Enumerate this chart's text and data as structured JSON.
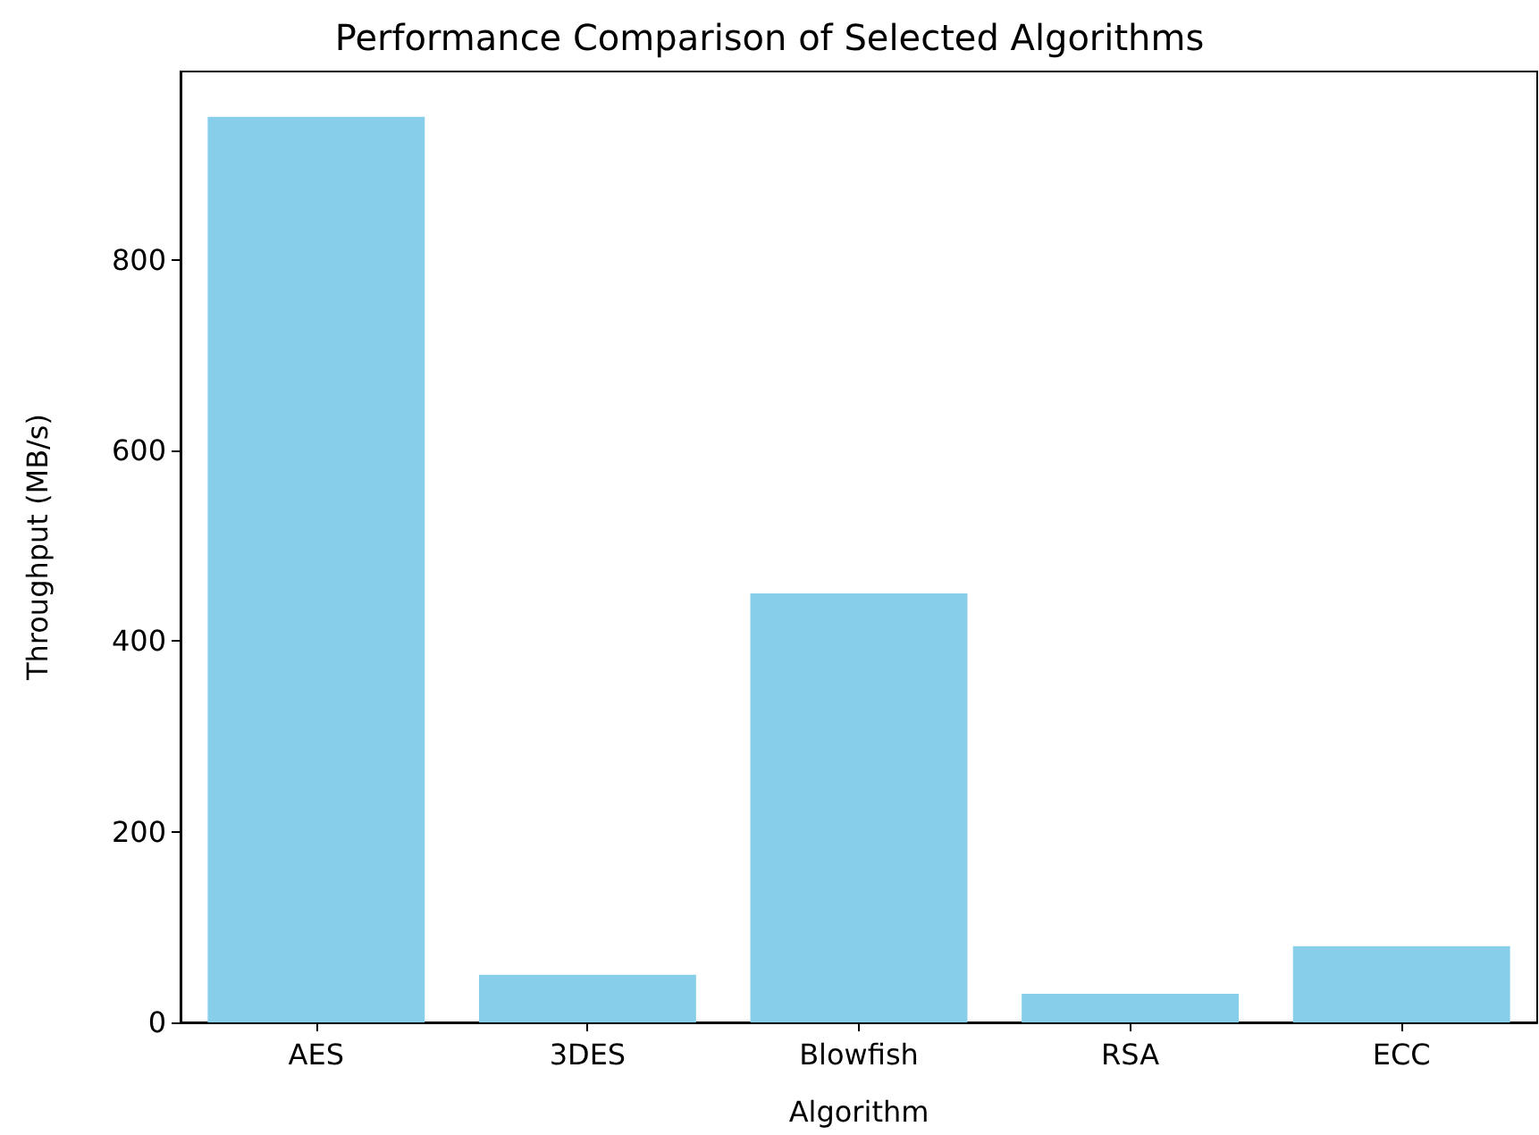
{
  "chart_data": {
    "type": "bar",
    "title": "Performance Comparison of Selected Algorithms",
    "xlabel": "Algorithm",
    "ylabel": "Throughput (MB/s)",
    "categories": [
      "AES",
      "3DES",
      "Blowfish",
      "RSA",
      "ECC"
    ],
    "values": [
      950,
      50,
      450,
      30,
      80
    ],
    "color": "#87ceeb",
    "ylim": [
      0,
      997.5
    ],
    "yticks": [
      0,
      200,
      400,
      600,
      800
    ],
    "grid": false
  }
}
